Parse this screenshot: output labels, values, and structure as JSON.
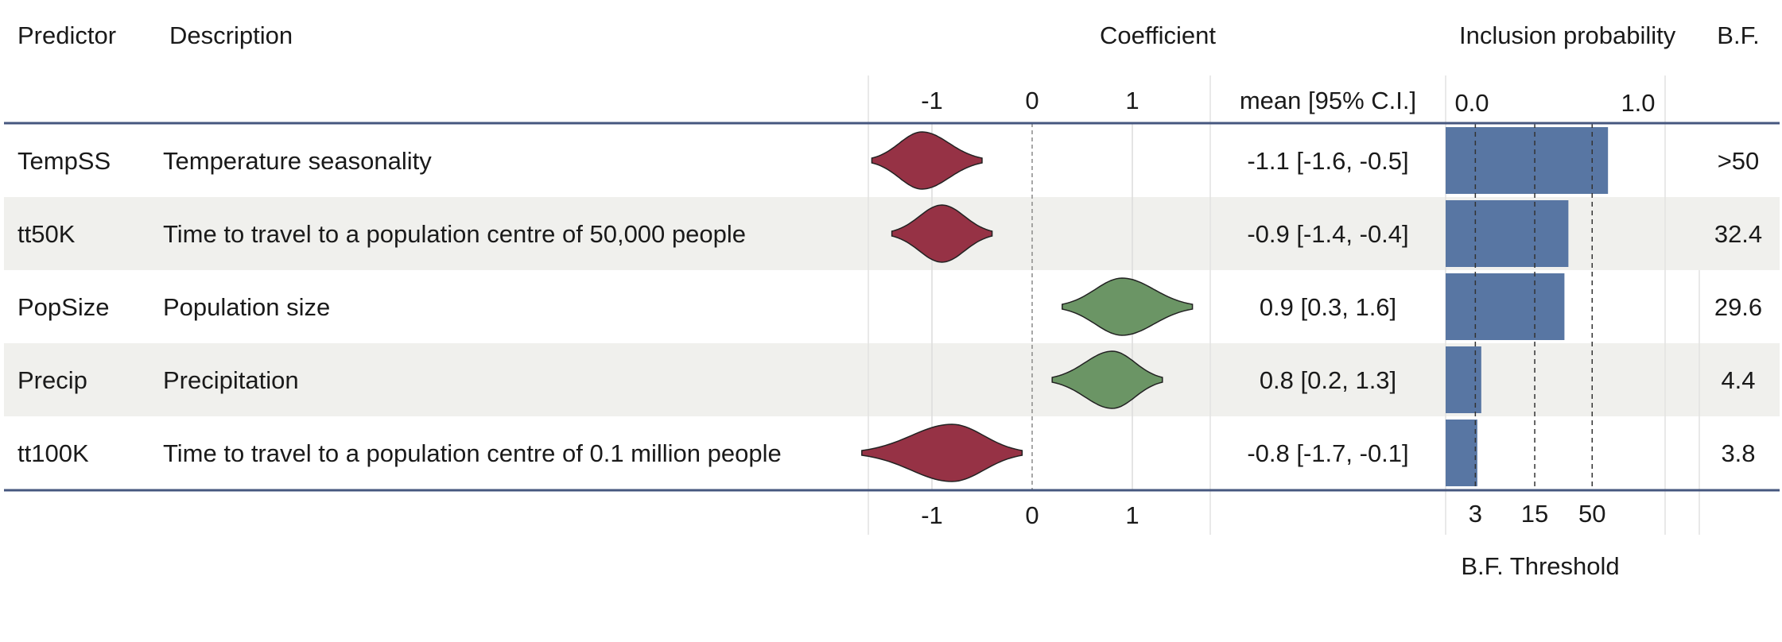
{
  "chart_data": {
    "type": "table",
    "headers": {
      "predictor": "Predictor",
      "description": "Description",
      "coefficient": "Coefficient",
      "ci": "mean [95% C.I.]",
      "inclusion": "Inclusion probability",
      "bf": "B.F."
    },
    "coefficient_axis": {
      "ticks": [
        "-1",
        "0",
        "1"
      ],
      "tick_values": [
        -1,
        0,
        1
      ],
      "range": [
        -1.65,
        1.75
      ]
    },
    "inclusion_axis": {
      "ticks": [
        "0.0",
        "1.0"
      ],
      "range": [
        0,
        1
      ]
    },
    "bf_threshold": {
      "label": "B.F. Threshold",
      "ticks": [
        "3",
        "15",
        "50"
      ],
      "inclusion_equivalent": [
        0.15,
        0.45,
        0.74
      ]
    },
    "rows": [
      {
        "predictor": "TempSS",
        "description": "Temperature seasonality",
        "mean": -1.1,
        "ci_low": -1.6,
        "ci_high": -0.5,
        "ci_text": "-1.1 [-1.6, -0.5]",
        "inclusion": 0.82,
        "bf": ">50",
        "direction": "negative"
      },
      {
        "predictor": "tt50K",
        "description": "Time to travel to a population centre of 50,000 people",
        "mean": -0.9,
        "ci_low": -1.4,
        "ci_high": -0.4,
        "ci_text": "-0.9 [-1.4, -0.4]",
        "inclusion": 0.62,
        "bf": "32.4",
        "direction": "negative"
      },
      {
        "predictor": "PopSize",
        "description": "Population size",
        "mean": 0.9,
        "ci_low": 0.3,
        "ci_high": 1.6,
        "ci_text": "0.9 [0.3, 1.6]",
        "inclusion": 0.6,
        "bf": "29.6",
        "direction": "positive"
      },
      {
        "predictor": "Precip",
        "description": "Precipitation",
        "mean": 0.8,
        "ci_low": 0.2,
        "ci_high": 1.3,
        "ci_text": "0.8 [0.2, 1.3]",
        "inclusion": 0.18,
        "bf": "4.4",
        "direction": "positive"
      },
      {
        "predictor": "tt100K",
        "description": "Time to travel to a population centre of 0.1 million people",
        "mean": -0.8,
        "ci_low": -1.7,
        "ci_high": -0.1,
        "ci_text": "-0.8 [-1.7, -0.1]",
        "inclusion": 0.16,
        "bf": "3.8",
        "direction": "negative"
      }
    ],
    "colors": {
      "negative": "#963245",
      "positive": "#6b9565",
      "bar": "#5876a3",
      "band": "#f0f0ed",
      "rule": "#46577f"
    }
  }
}
